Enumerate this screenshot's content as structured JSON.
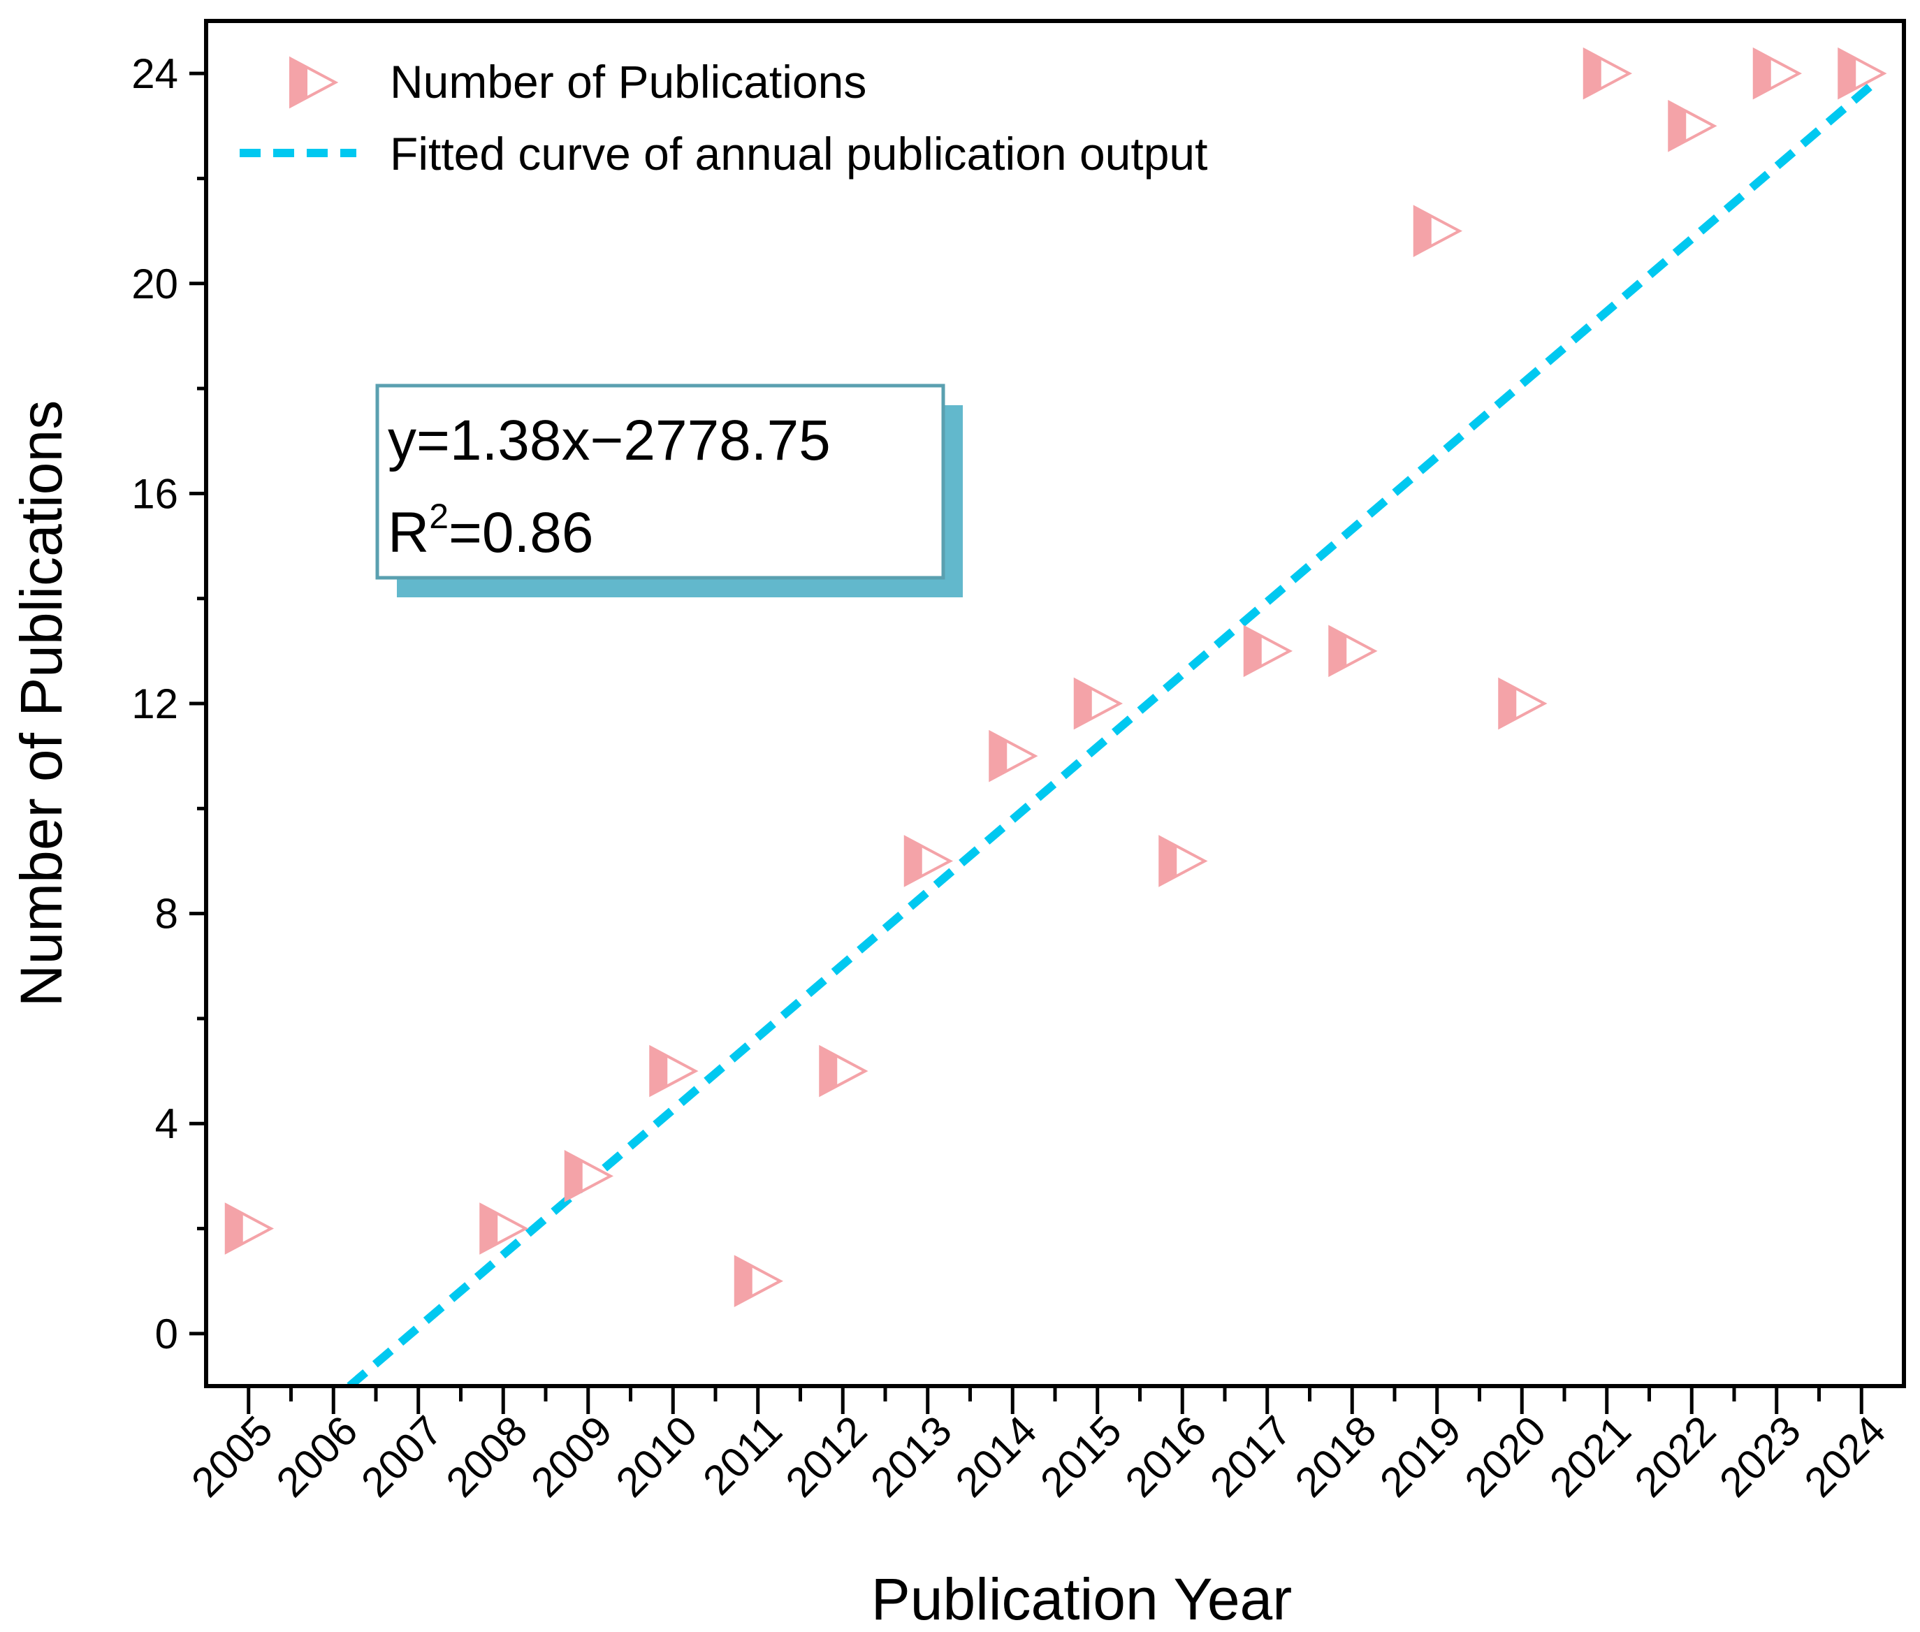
{
  "chart_data": {
    "type": "scatter",
    "xlabel": "Publication Year",
    "ylabel": "Number of Publications",
    "xlim": [
      2004.5,
      2024.5
    ],
    "ylim": [
      -1,
      25
    ],
    "x_ticks": [
      "2005",
      "2006",
      "2007",
      "2008",
      "2009",
      "2010",
      "2011",
      "2012",
      "2013",
      "2014",
      "2015",
      "2016",
      "2017",
      "2018",
      "2019",
      "2020",
      "2021",
      "2022",
      "2023",
      "2024"
    ],
    "y_ticks": [
      "0",
      "4",
      "8",
      "12",
      "16",
      "20",
      "24"
    ],
    "grid": false,
    "legend_position": "top-left",
    "series": [
      {
        "name": "Number of Publications",
        "marker": "right-triangle",
        "color": "#F4A3A8",
        "x": [
          2005,
          2008,
          2009,
          2010,
          2011,
          2012,
          2013,
          2014,
          2015,
          2016,
          2017,
          2018,
          2019,
          2020,
          2021,
          2022,
          2023,
          2024
        ],
        "y": [
          2,
          2,
          3,
          5,
          1,
          5,
          9,
          11,
          12,
          9,
          13,
          13,
          21,
          12,
          24,
          23,
          24,
          24
        ]
      },
      {
        "name": "Fitted curve of annual publication output",
        "style": "dashed",
        "color": "#00C8F0",
        "x": [
          2006.19,
          2024.1
        ],
        "y": [
          -1,
          23.75
        ]
      }
    ],
    "annotation": {
      "equation": "y=1.38x−2778.75",
      "r2_prefix": "R",
      "r2_sup": "2",
      "r2_value": "=0.86",
      "border_color": "#5AA0B0",
      "shadow_color": "#62B8CC"
    }
  }
}
